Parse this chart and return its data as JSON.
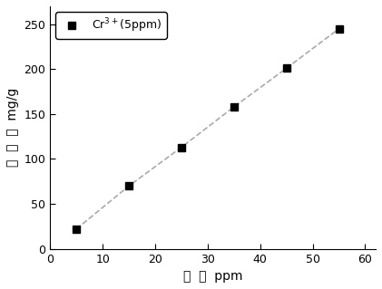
{
  "x": [
    5,
    15,
    25,
    35,
    45,
    55
  ],
  "y": [
    22,
    70,
    113,
    158,
    201,
    245
  ],
  "line_color": "#aaaaaa",
  "marker_color": "#000000",
  "marker": "s",
  "marker_size": 6,
  "line_style": "--",
  "line_width": 1.2,
  "xlabel": "濃  度  ppm",
  "ylabel": "吸  附  量  mg/g",
  "xlim": [
    0,
    62
  ],
  "ylim": [
    0,
    270
  ],
  "xticks": [
    0,
    10,
    20,
    30,
    40,
    50,
    60
  ],
  "yticks": [
    0,
    50,
    100,
    150,
    200,
    250
  ],
  "legend_label": "Cr$^{3+}$(5ppm)",
  "background_color": "#ffffff",
  "title": ""
}
